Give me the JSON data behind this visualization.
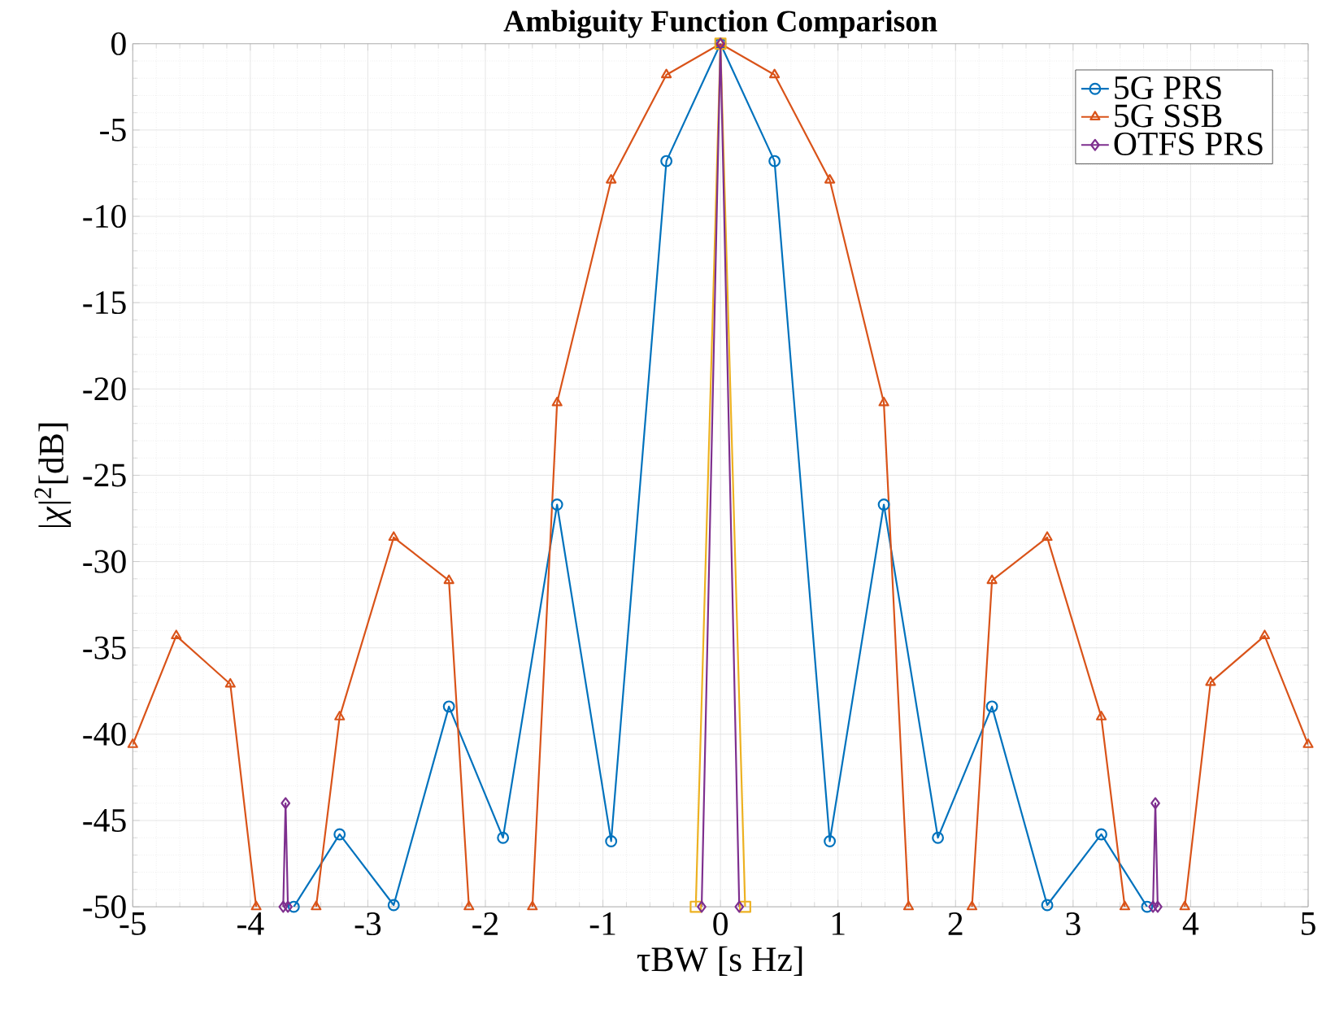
{
  "chart_data": {
    "type": "line",
    "title": "Ambiguity Function Comparison",
    "xlabel": "τBW [s Hz]",
    "ylabel": "|*χ*|$^{2}$[dB]",
    "xlim": [
      -5,
      5
    ],
    "ylim": [
      -50,
      0
    ],
    "xticks": [
      -5,
      -4,
      -3,
      -2,
      -1,
      0,
      1,
      2,
      3,
      4,
      5
    ],
    "yticks": [
      -50,
      -45,
      -40,
      -35,
      -30,
      -25,
      -20,
      -15,
      -10,
      -5,
      0
    ],
    "grid": true,
    "legend": "top right",
    "series": [
      {
        "name": "5G PRS",
        "color": "#0072bd",
        "marker": "circle",
        "x": [
          -3.63,
          -3.24,
          -2.78,
          -2.31,
          -1.85,
          -1.39,
          -0.93,
          -0.46,
          0,
          0.46,
          0.93,
          1.39,
          1.85,
          2.31,
          2.78,
          3.24,
          3.63
        ],
        "values": [
          -50,
          -45.8,
          -49.9,
          -38.4,
          -46.0,
          -26.7,
          -46.2,
          -6.8,
          0,
          -6.8,
          -46.2,
          -26.7,
          -46.0,
          -38.4,
          -49.9,
          -45.8,
          -50
        ]
      },
      {
        "name": "5G SSB",
        "color": "#d95319",
        "marker": "triangle",
        "x": [
          -5,
          -4.63,
          -4.17,
          -3.95,
          null,
          -3.44,
          -3.24,
          -2.78,
          -2.31,
          -2.14,
          null,
          -1.6,
          -1.39,
          -0.93,
          -0.46,
          0,
          0.46,
          0.93,
          1.39,
          1.6,
          null,
          2.14,
          2.31,
          2.78,
          3.24,
          3.44,
          null,
          3.95,
          4.17,
          4.63,
          5
        ],
        "values": [
          -40.6,
          -34.3,
          -37.1,
          -50,
          null,
          -50,
          -39.0,
          -28.6,
          -31.1,
          -50,
          null,
          -50,
          -20.8,
          -7.9,
          -1.8,
          0,
          -1.8,
          -7.9,
          -20.8,
          -50,
          null,
          -50,
          -31.1,
          -28.6,
          -39.0,
          -50,
          null,
          -50,
          -37.0,
          -34.3,
          -40.6
        ]
      },
      {
        "color": "#edb120",
        "marker": "square",
        "x": [
          -0.21,
          0,
          0.21
        ],
        "values": [
          -50,
          0,
          -50
        ]
      },
      {
        "name": "OTFS PRS",
        "color": "#7e2f8e",
        "marker": "diamond",
        "x": [
          -3.72,
          -3.7,
          -3.68,
          null,
          -0.16,
          0,
          0.16,
          null,
          3.68,
          3.7,
          3.72
        ],
        "values": [
          -50,
          -44.0,
          -50,
          null,
          -50,
          0,
          -50,
          null,
          -50,
          -44.0,
          -50
        ]
      }
    ]
  }
}
